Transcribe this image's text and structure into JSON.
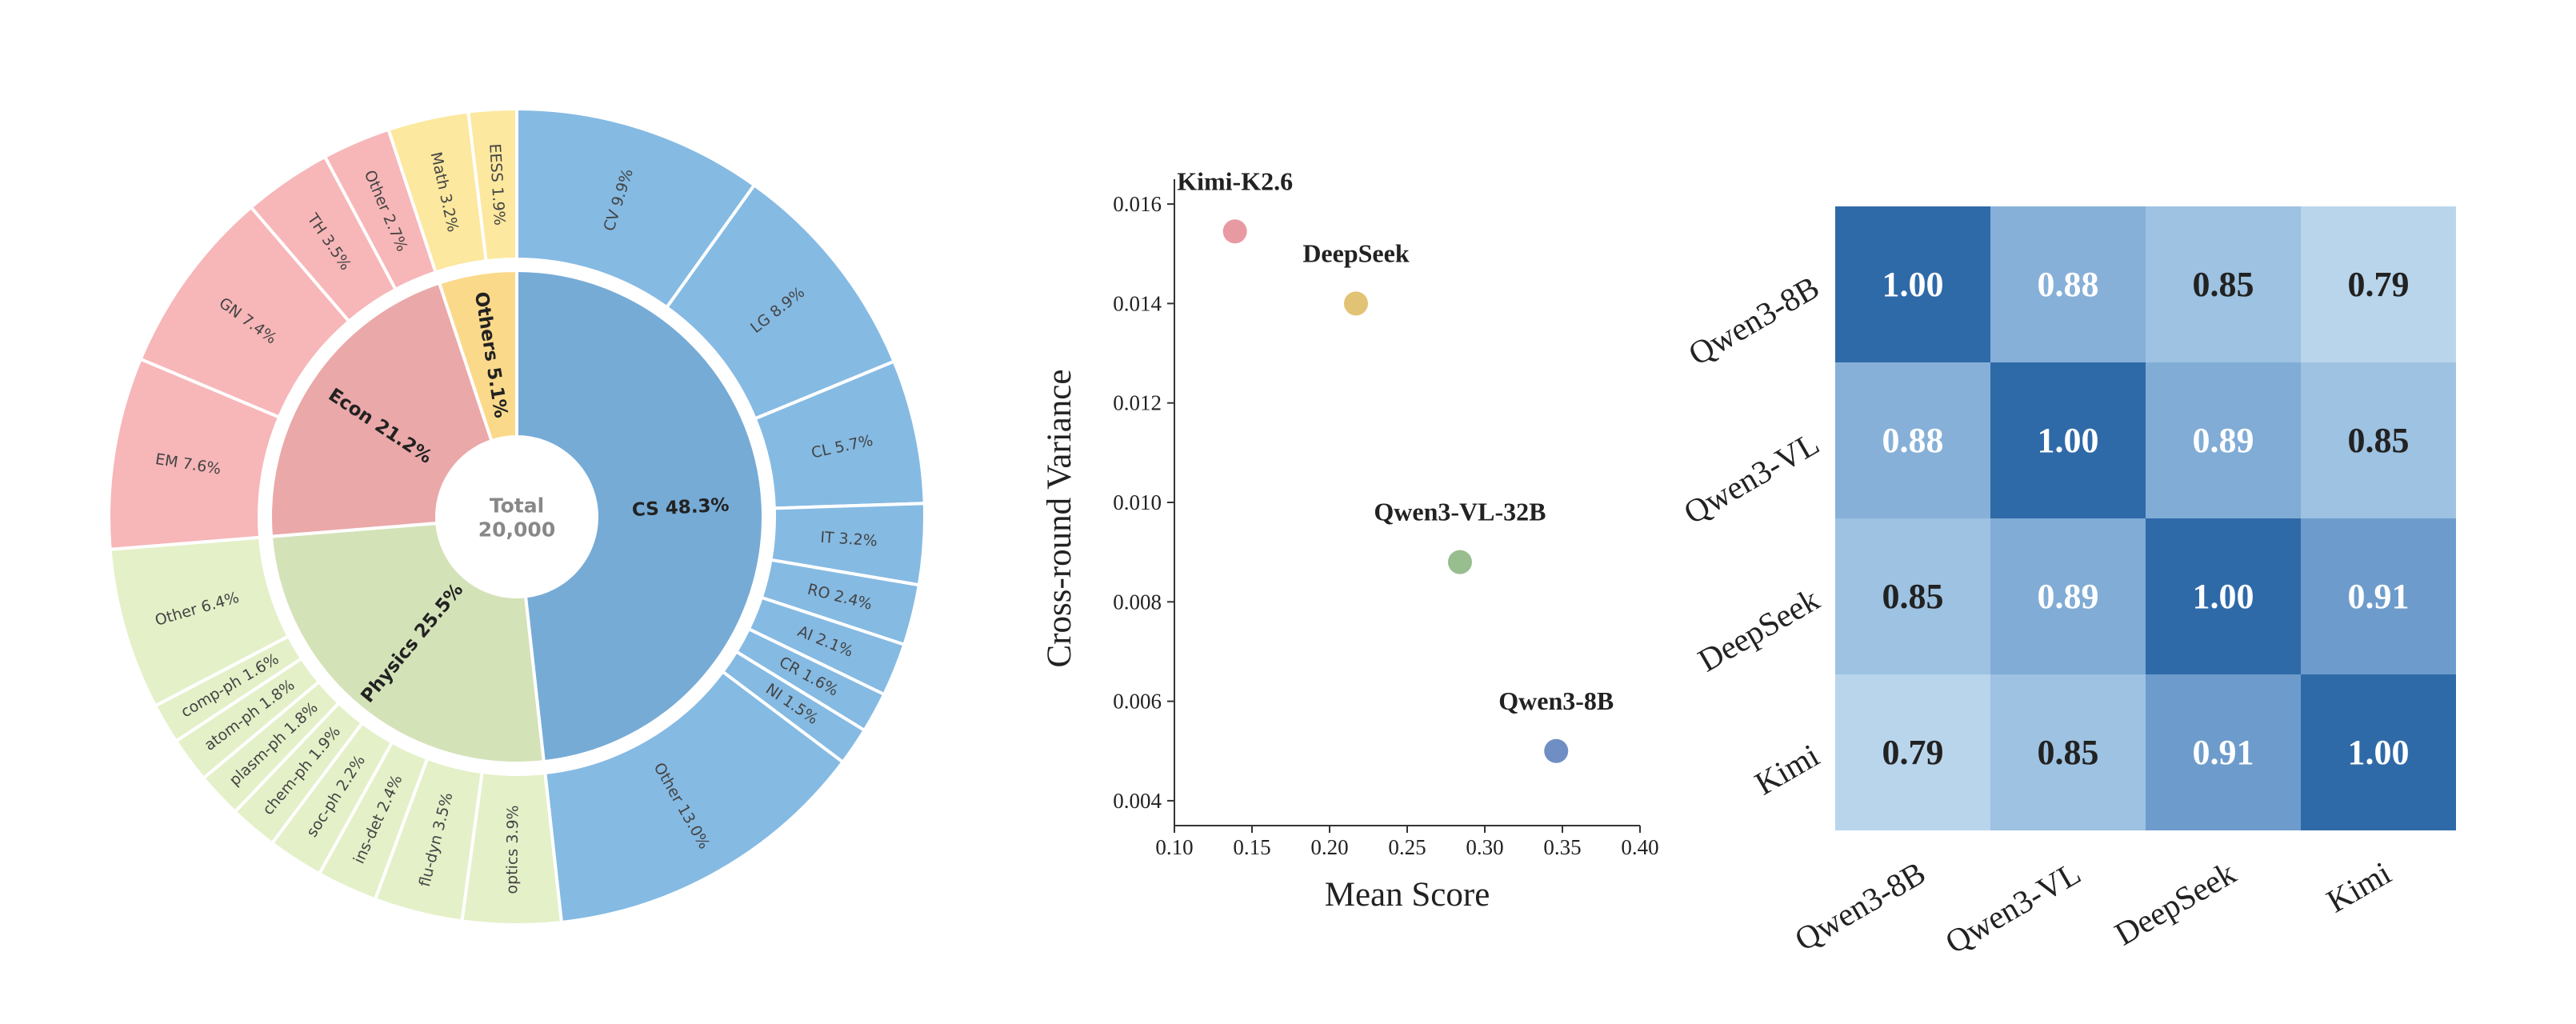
{
  "chart_data": [
    {
      "type": "sunburst",
      "center": {
        "label": "Total",
        "value": "20,000"
      },
      "groups": [
        {
          "label": "CS 48.3%",
          "value": 48.3,
          "inner_color": "#76abd6",
          "outer_color": "#85bae3",
          "children": [
            {
              "label": "CV 9.9%",
              "value": 9.9
            },
            {
              "label": "LG 8.9%",
              "value": 8.9
            },
            {
              "label": "CL 5.7%",
              "value": 5.7
            },
            {
              "label": "IT 3.2%",
              "value": 3.2
            },
            {
              "label": "RO 2.4%",
              "value": 2.4
            },
            {
              "label": "AI 2.1%",
              "value": 2.1
            },
            {
              "label": "CR 1.6%",
              "value": 1.6
            },
            {
              "label": "NI 1.5%",
              "value": 1.5
            },
            {
              "label": "Other 13.0%",
              "value": 13.0
            }
          ]
        },
        {
          "label": "Physics 25.5%",
          "value": 25.5,
          "inner_color": "#d4e2b8",
          "outer_color": "#e4f0c8",
          "children": [
            {
              "label": "optics 3.9%",
              "value": 3.9
            },
            {
              "label": "flu-dyn 3.5%",
              "value": 3.5
            },
            {
              "label": "ins-det 2.4%",
              "value": 2.4
            },
            {
              "label": "soc-ph 2.2%",
              "value": 2.2
            },
            {
              "label": "chem-ph 1.9%",
              "value": 1.9
            },
            {
              "label": "plasm-ph 1.8%",
              "value": 1.8
            },
            {
              "label": "atom-ph 1.8%",
              "value": 1.8
            },
            {
              "label": "comp-ph 1.6%",
              "value": 1.6
            },
            {
              "label": "Other 6.4%",
              "value": 6.4
            }
          ]
        },
        {
          "label": "Econ 21.2%",
          "value": 21.2,
          "inner_color": "#eba8a9",
          "outer_color": "#f7b6b8",
          "children": [
            {
              "label": "EM 7.6%",
              "value": 7.6
            },
            {
              "label": "GN 7.4%",
              "value": 7.4
            },
            {
              "label": "TH 3.5%",
              "value": 3.5
            },
            {
              "label": "Other 2.7%",
              "value": 2.7
            }
          ]
        },
        {
          "label": "Others 5.1%",
          "value": 5.1,
          "inner_color": "#fbd98a",
          "outer_color": "#fce89e",
          "children": [
            {
              "label": "Math 3.2%",
              "value": 3.2
            },
            {
              "label": "EESS 1.9%",
              "value": 1.9
            }
          ]
        }
      ]
    },
    {
      "type": "scatter",
      "xlabel": "Mean Score",
      "ylabel": "Cross-round Variance",
      "xlim": [
        0.1,
        0.4
      ],
      "ylim": [
        0.0035,
        0.0165
      ],
      "xticks": [
        "0.10",
        "0.15",
        "0.20",
        "0.25",
        "0.30",
        "0.35",
        "0.40"
      ],
      "yticks": [
        "0.004",
        "0.006",
        "0.008",
        "0.010",
        "0.012",
        "0.014",
        "0.016"
      ],
      "points": [
        {
          "name": "Kimi-K2.6",
          "x": 0.139,
          "y": 0.01545,
          "color": "#e89aa3"
        },
        {
          "name": "DeepSeek",
          "x": 0.217,
          "y": 0.014,
          "color": "#e2c274"
        },
        {
          "name": "Qwen3-VL-32B",
          "x": 0.284,
          "y": 0.0088,
          "color": "#98bd8e"
        },
        {
          "name": "Qwen3-8B",
          "x": 0.346,
          "y": 0.005,
          "color": "#6f8fc4"
        }
      ]
    },
    {
      "type": "heatmap",
      "rows": [
        "Qwen3-8B",
        "Qwen3-VL",
        "DeepSeek",
        "Kimi"
      ],
      "cols": [
        "Qwen3-8B",
        "Qwen3-VL",
        "DeepSeek",
        "Kimi"
      ],
      "values": [
        [
          1.0,
          0.88,
          0.85,
          0.79
        ],
        [
          0.88,
          1.0,
          0.89,
          0.85
        ],
        [
          0.85,
          0.89,
          1.0,
          0.91
        ],
        [
          0.79,
          0.85,
          0.91,
          1.0
        ]
      ],
      "labels": [
        [
          "1.00",
          "0.88",
          "0.85",
          "0.79"
        ],
        [
          "0.88",
          "1.00",
          "0.89",
          "0.85"
        ],
        [
          "0.85",
          "0.89",
          "1.00",
          "0.91"
        ],
        [
          "0.79",
          "0.85",
          "0.91",
          "1.00"
        ]
      ],
      "cell_colors": [
        [
          "#2f6aa8",
          "#86b0d8",
          "#9dc2e2",
          "#b9d5ec"
        ],
        [
          "#86b0d8",
          "#2f6aa8",
          "#80acd6",
          "#9dc2e2"
        ],
        [
          "#9dc2e2",
          "#80acd6",
          "#2f6aa8",
          "#6d9ccc"
        ],
        [
          "#b9d5ec",
          "#9dc2e2",
          "#6d9ccc",
          "#2f6aa8"
        ]
      ],
      "label_colors": [
        [
          "#ffffff",
          "#ffffff",
          "#222222",
          "#222222"
        ],
        [
          "#ffffff",
          "#ffffff",
          "#ffffff",
          "#222222"
        ],
        [
          "#222222",
          "#ffffff",
          "#ffffff",
          "#ffffff"
        ],
        [
          "#222222",
          "#222222",
          "#ffffff",
          "#ffffff"
        ]
      ]
    }
  ]
}
